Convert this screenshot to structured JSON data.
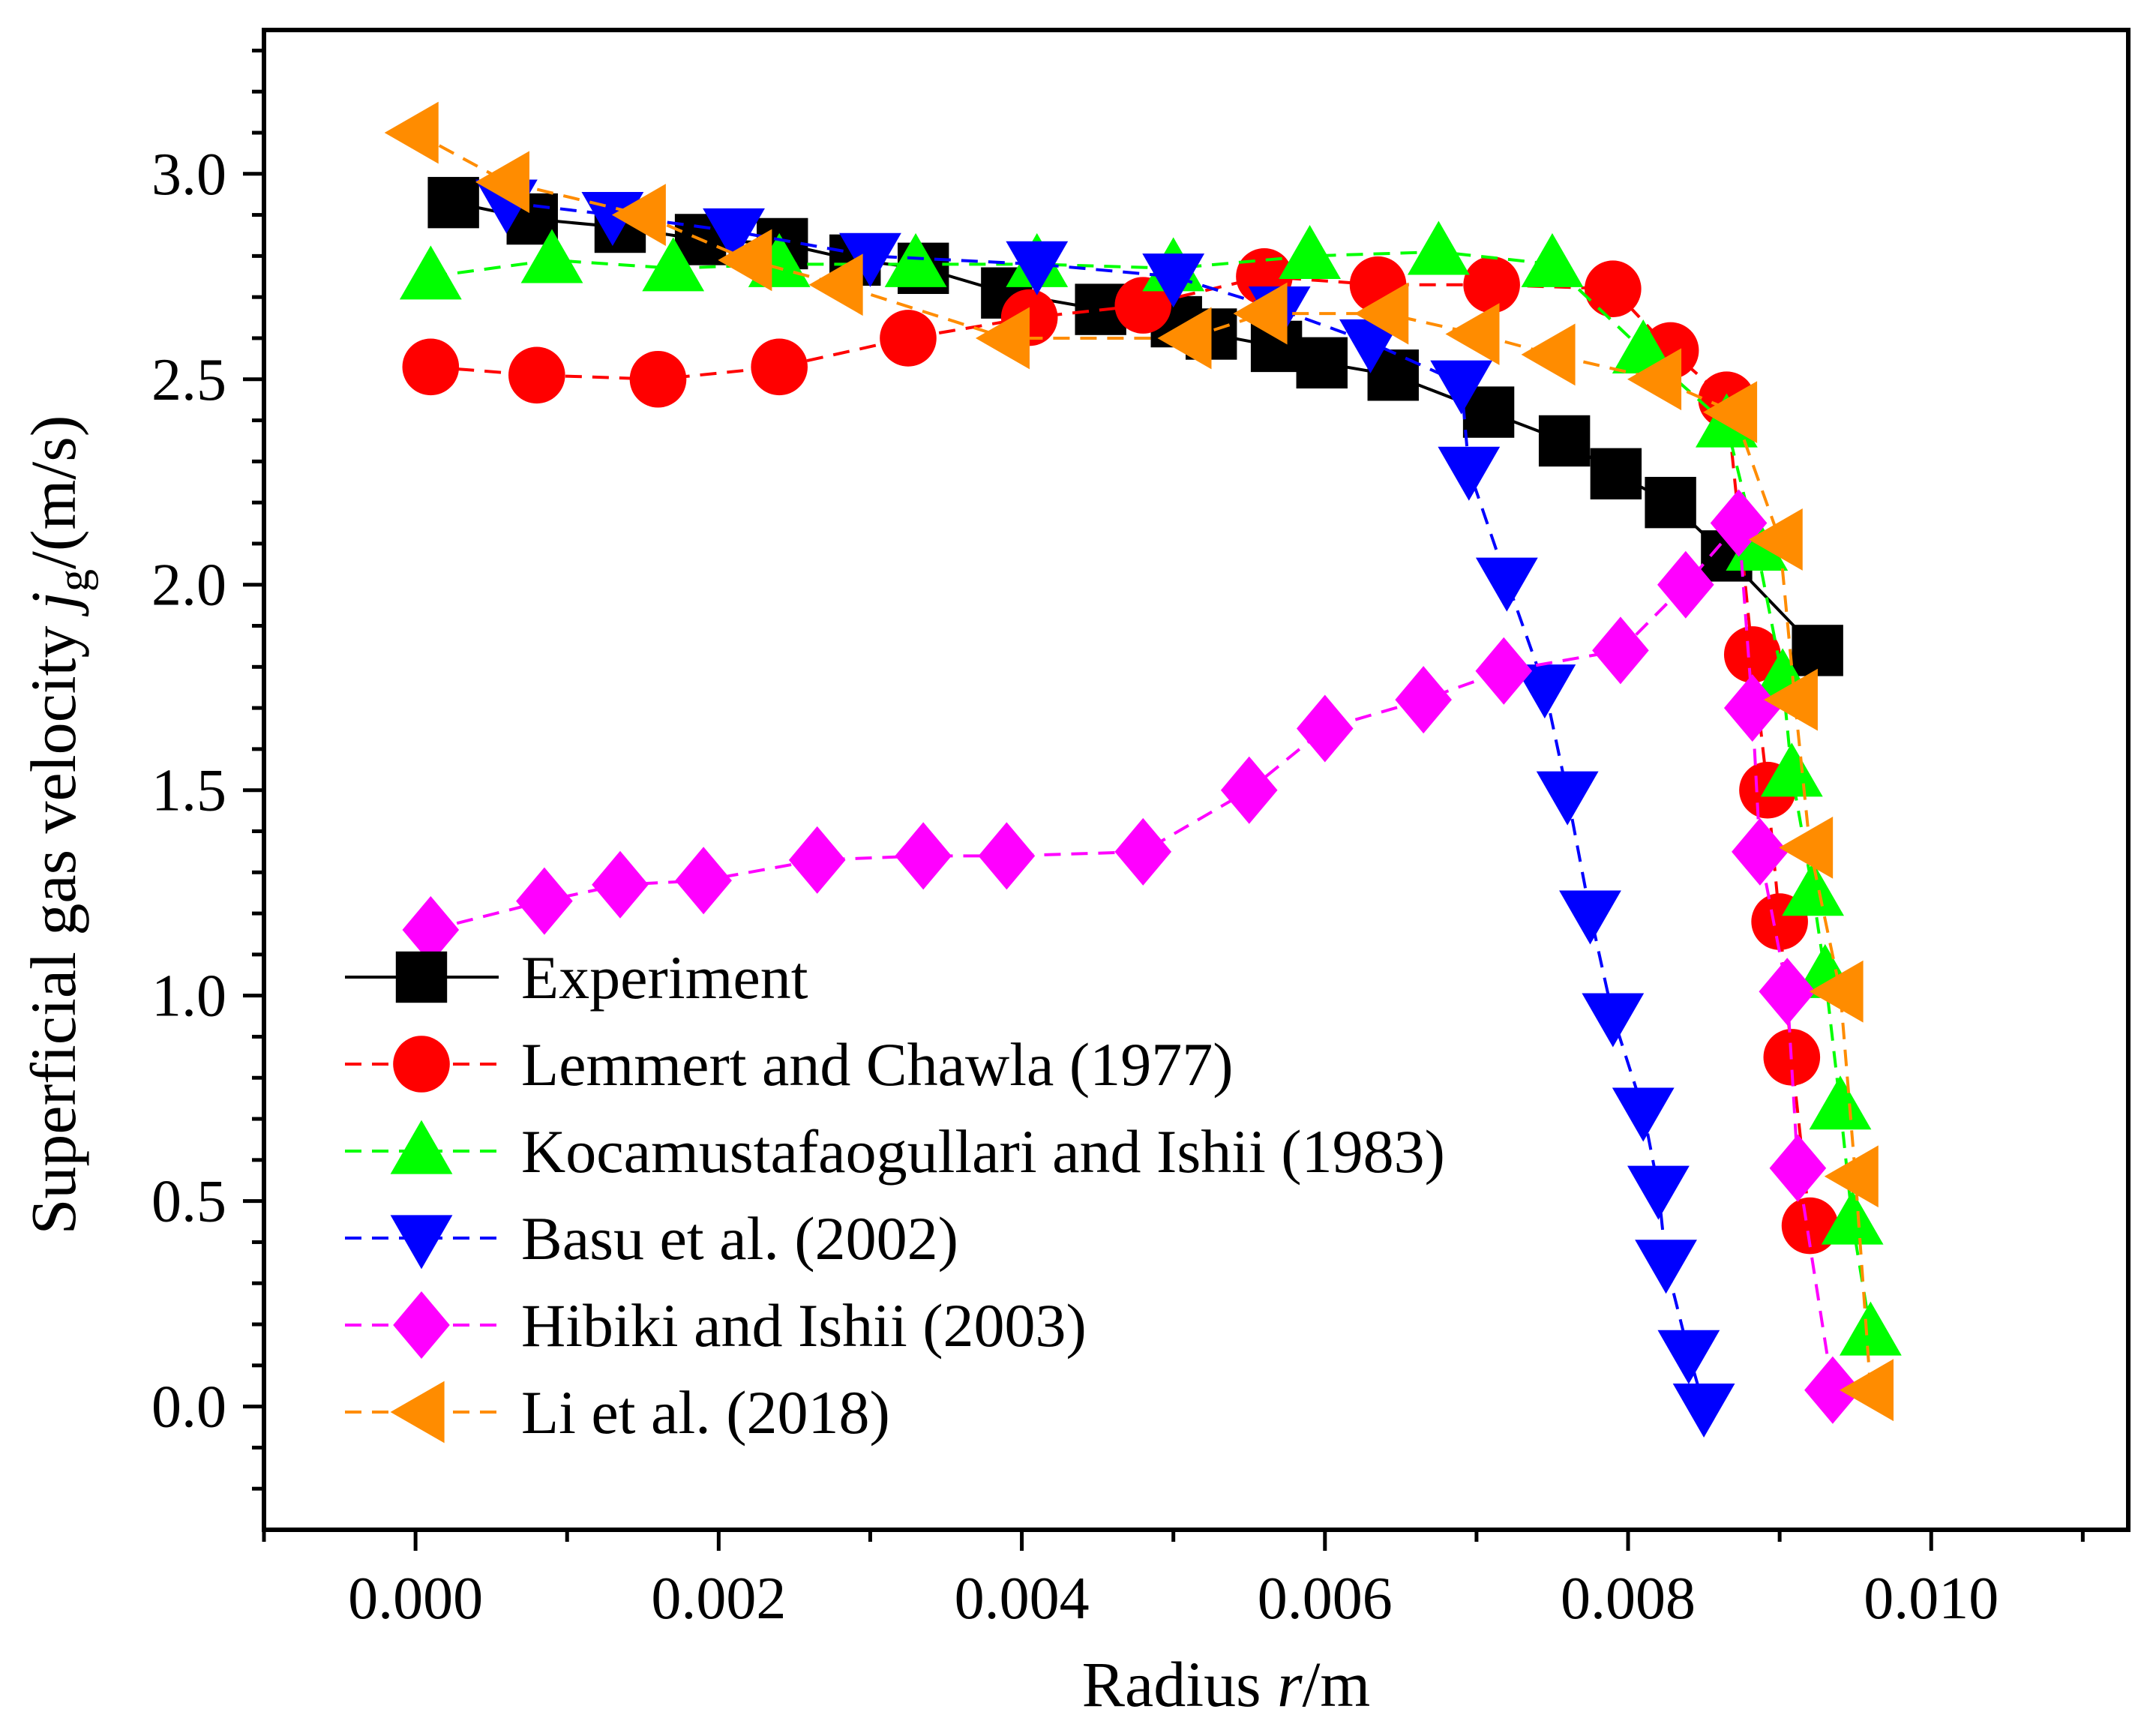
{
  "chart_data": {
    "type": "line",
    "title": "",
    "xlabel": {
      "prefix": "Radius ",
      "var": "r",
      "suffix": "/m"
    },
    "ylabel": {
      "prefix": "Superficial gas velocity ",
      "var": "j",
      "sub": "g",
      "suffix": "/(m/s)"
    },
    "xlim": [
      -0.001,
      0.0113
    ],
    "ylim": [
      -0.3,
      3.35
    ],
    "xticks": [
      0.0,
      0.002,
      0.004,
      0.006,
      0.008,
      0.01
    ],
    "xtick_labels": [
      "0.000",
      "0.002",
      "0.004",
      "0.006",
      "0.008",
      "0.010"
    ],
    "yticks": [
      0.0,
      0.5,
      1.0,
      1.5,
      2.0,
      2.5,
      3.0
    ],
    "ytick_labels": [
      "0.0",
      "0.5",
      "1.0",
      "1.5",
      "2.0",
      "2.5",
      "3.0"
    ],
    "grid": false,
    "legend_position": "bottom-left",
    "series": [
      {
        "name": "Experiment",
        "color": "#000000",
        "marker": "square",
        "dashed": false,
        "x": [
          0.00025,
          0.00077,
          0.00135,
          0.00188,
          0.00242,
          0.0029,
          0.00335,
          0.0039,
          0.00452,
          0.00502,
          0.00525,
          0.00568,
          0.00598,
          0.00645,
          0.00708,
          0.00758,
          0.00792,
          0.00828,
          0.00865,
          0.00925
        ],
        "y": [
          2.93,
          2.89,
          2.87,
          2.84,
          2.83,
          2.79,
          2.77,
          2.71,
          2.67,
          2.64,
          2.61,
          2.58,
          2.54,
          2.51,
          2.42,
          2.35,
          2.27,
          2.2,
          2.07,
          1.84
        ]
      },
      {
        "name": "Lemmert and Chawla (1977)",
        "color": "#ff0000",
        "marker": "circle",
        "dashed": true,
        "x": [
          0.0001,
          0.0008,
          0.0016,
          0.0024,
          0.00325,
          0.00405,
          0.0048,
          0.0056,
          0.00635,
          0.0071,
          0.0079,
          0.00828,
          0.00865,
          0.00882,
          0.00892,
          0.009,
          0.00908,
          0.0092
        ],
        "y": [
          2.53,
          2.51,
          2.5,
          2.53,
          2.6,
          2.65,
          2.68,
          2.75,
          2.73,
          2.73,
          2.72,
          2.57,
          2.45,
          1.83,
          1.5,
          1.18,
          0.85,
          0.44
        ]
      },
      {
        "name": "Kocamustafaogullari and Ishii (1983)",
        "color": "#00ff00",
        "marker": "triangle-up",
        "dashed": true,
        "x": [
          0.0001,
          0.0009,
          0.0017,
          0.0024,
          0.0033,
          0.0041,
          0.005,
          0.0059,
          0.00675,
          0.0075,
          0.0081,
          0.00865,
          0.00885,
          0.00902,
          0.00908,
          0.00922,
          0.0093,
          0.0094,
          0.00948,
          0.0096
        ],
        "y": [
          2.75,
          2.79,
          2.77,
          2.78,
          2.78,
          2.78,
          2.77,
          2.8,
          2.81,
          2.78,
          2.57,
          2.39,
          2.09,
          1.77,
          1.54,
          1.25,
          1.05,
          0.73,
          0.45,
          0.18
        ]
      },
      {
        "name": "Basu et al. (2002)",
        "color": "#0000ff",
        "marker": "triangle-down",
        "dashed": true,
        "x": [
          0.0006,
          0.0013,
          0.0021,
          0.003,
          0.0041,
          0.005,
          0.0057,
          0.0063,
          0.0069,
          0.00695,
          0.0072,
          0.00745,
          0.0076,
          0.00775,
          0.0079,
          0.0081,
          0.0082,
          0.00825,
          0.0084,
          0.0085
        ],
        "y": [
          2.93,
          2.9,
          2.86,
          2.8,
          2.78,
          2.75,
          2.67,
          2.59,
          2.49,
          2.28,
          2.01,
          1.75,
          1.49,
          1.2,
          0.95,
          0.72,
          0.53,
          0.35,
          0.13,
          0.0
        ]
      },
      {
        "name": "Hibiki and Ishii (2003)",
        "color": "#ff00ff",
        "marker": "diamond",
        "dashed": true,
        "x": [
          0.0001,
          0.00085,
          0.00135,
          0.0019,
          0.00265,
          0.00335,
          0.0039,
          0.0048,
          0.0055,
          0.006,
          0.00665,
          0.00718,
          0.00795,
          0.00838,
          0.00873,
          0.00882,
          0.00887,
          0.00905,
          0.00912,
          0.00935
        ],
        "y": [
          1.16,
          1.23,
          1.27,
          1.28,
          1.33,
          1.34,
          1.34,
          1.35,
          1.5,
          1.65,
          1.72,
          1.79,
          1.84,
          2.0,
          2.15,
          1.7,
          1.35,
          1.01,
          0.58,
          0.04
        ]
      },
      {
        "name": "Li et al. (2018)",
        "color": "#ff8c00",
        "marker": "triangle-left",
        "dashed": true,
        "x": [
          0.0,
          0.0006,
          0.0015,
          0.0022,
          0.0028,
          0.0039,
          0.0051,
          0.0056,
          0.0064,
          0.007,
          0.0075,
          0.0082,
          0.0087,
          0.009,
          0.0091,
          0.0092,
          0.0094,
          0.0095,
          0.0096
        ],
        "y": [
          3.1,
          2.98,
          2.9,
          2.79,
          2.73,
          2.6,
          2.6,
          2.66,
          2.66,
          2.61,
          2.56,
          2.5,
          2.42,
          2.11,
          1.72,
          1.36,
          1.01,
          0.56,
          0.04
        ]
      }
    ]
  }
}
